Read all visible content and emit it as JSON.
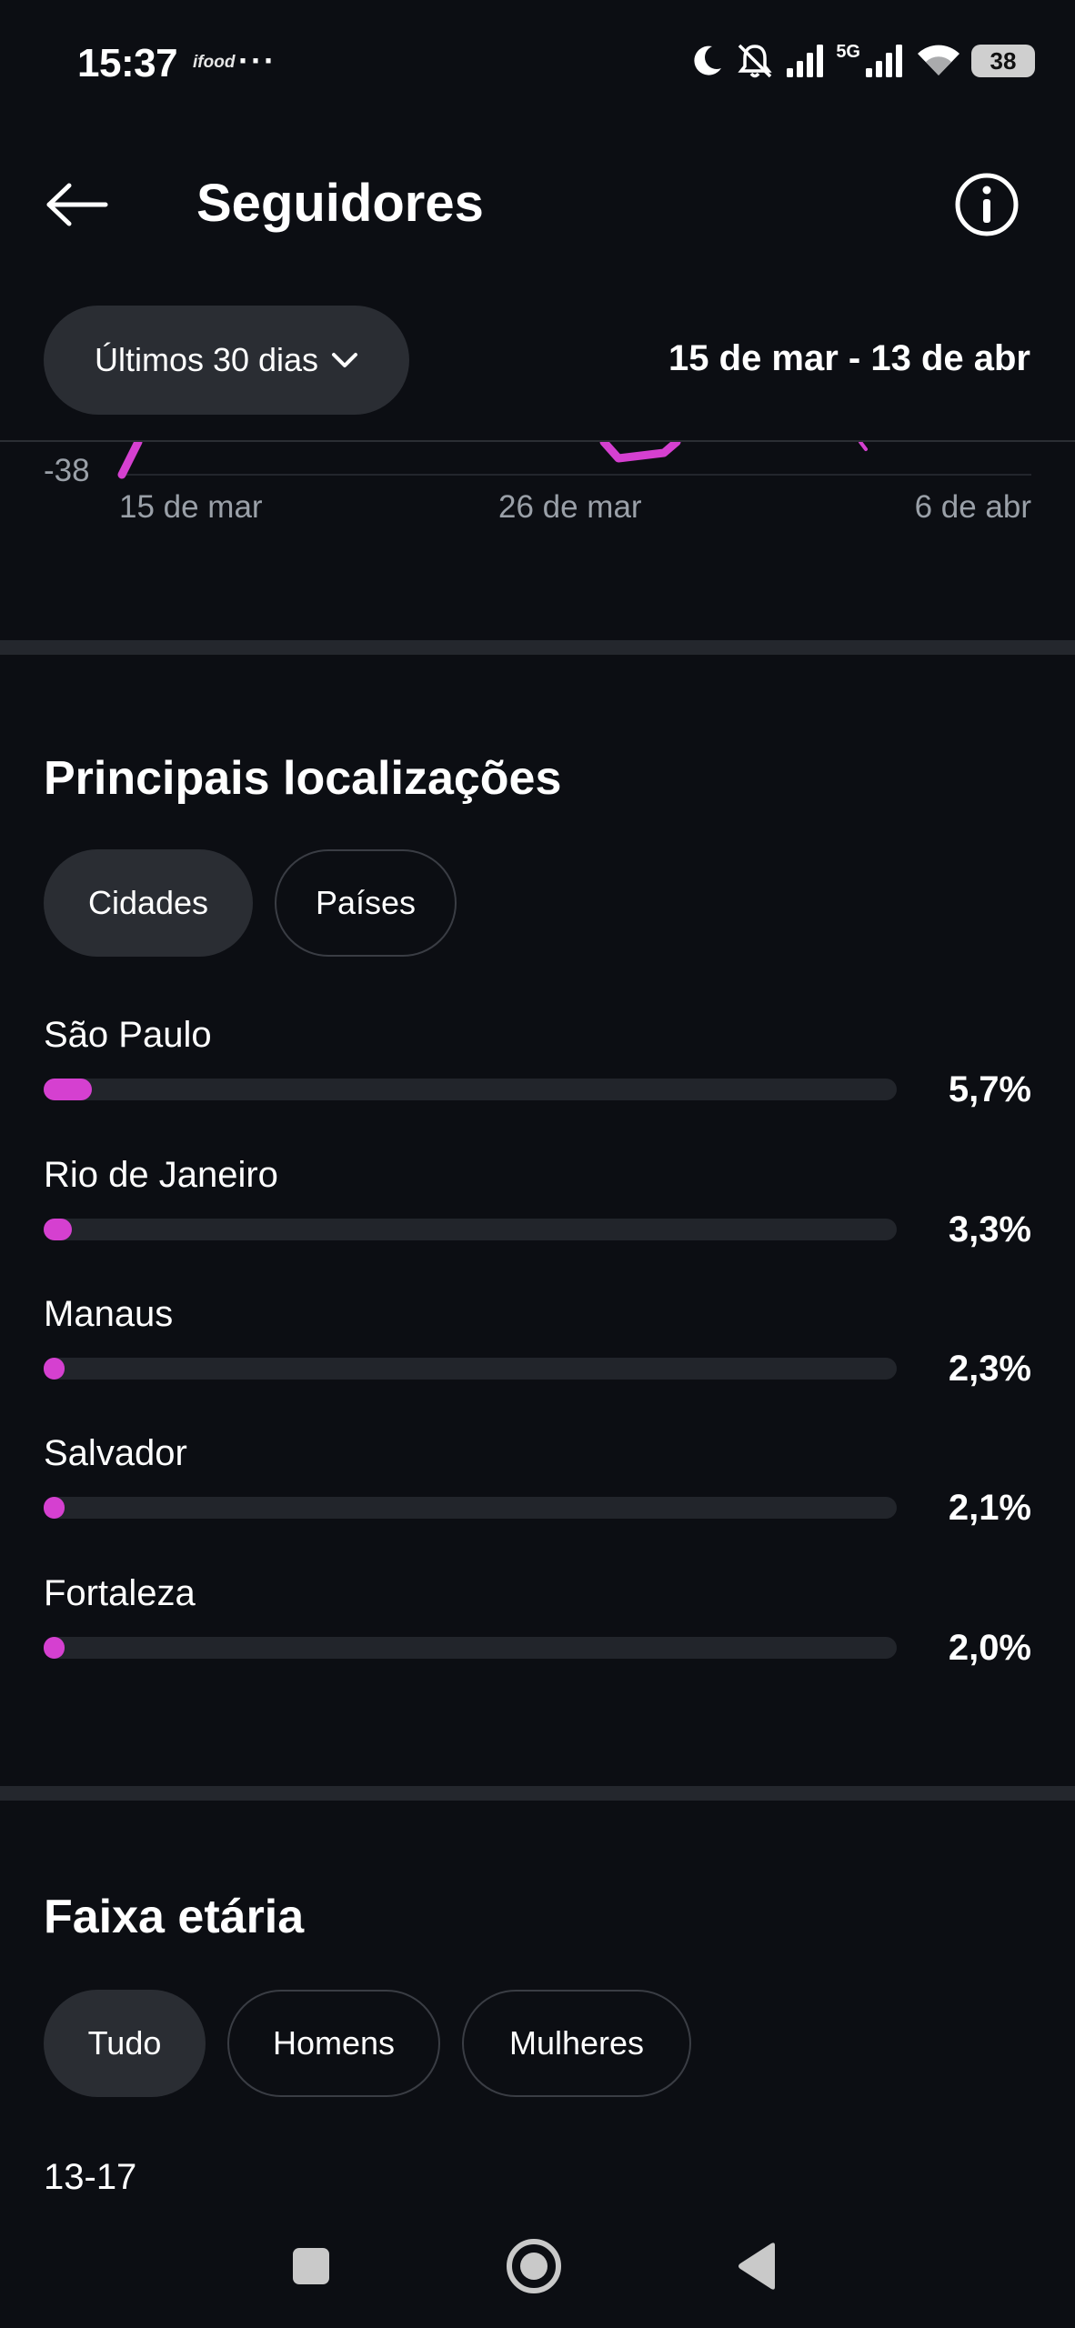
{
  "status_bar": {
    "time": "15:37",
    "app_logo": "ifood",
    "more": "···",
    "network": "5G",
    "battery": "38",
    "icons": [
      "moon-icon",
      "mute-bell-icon",
      "signal-icon",
      "signal-5g-icon",
      "wifi-icon",
      "battery-icon"
    ]
  },
  "header": {
    "title": "Seguidores",
    "back_icon": "arrow-left-icon",
    "info_icon": "info-icon"
  },
  "filter": {
    "period_label": "Últimos 30 dias",
    "date_range": "15 de mar - 13 de abr"
  },
  "chart_data": {
    "type": "line",
    "y_visible_tick": "-38",
    "x_ticks": [
      "15 de mar",
      "26 de mar",
      "6 de abr"
    ],
    "series_color": "#d540d0"
  },
  "locations": {
    "title": "Principais localizações",
    "tabs": [
      {
        "label": "Cidades",
        "active": true
      },
      {
        "label": "Países",
        "active": false
      }
    ],
    "items": [
      {
        "name": "São Paulo",
        "percent": "5,7%",
        "value": 5.7
      },
      {
        "name": "Rio de Janeiro",
        "percent": "3,3%",
        "value": 3.3
      },
      {
        "name": "Manaus",
        "percent": "2,3%",
        "value": 2.3
      },
      {
        "name": "Salvador",
        "percent": "2,1%",
        "value": 2.1
      },
      {
        "name": "Fortaleza",
        "percent": "2,0%",
        "value": 2.0
      }
    ],
    "bar_color": "#d540d0"
  },
  "age": {
    "title": "Faixa etária",
    "tabs": [
      {
        "label": "Tudo",
        "active": true
      },
      {
        "label": "Homens",
        "active": false
      },
      {
        "label": "Mulheres",
        "active": false
      }
    ],
    "first_range": "13-17"
  },
  "nav_bar": {
    "icons": [
      "recents-square-icon",
      "home-circle-icon",
      "back-triangle-icon"
    ]
  }
}
